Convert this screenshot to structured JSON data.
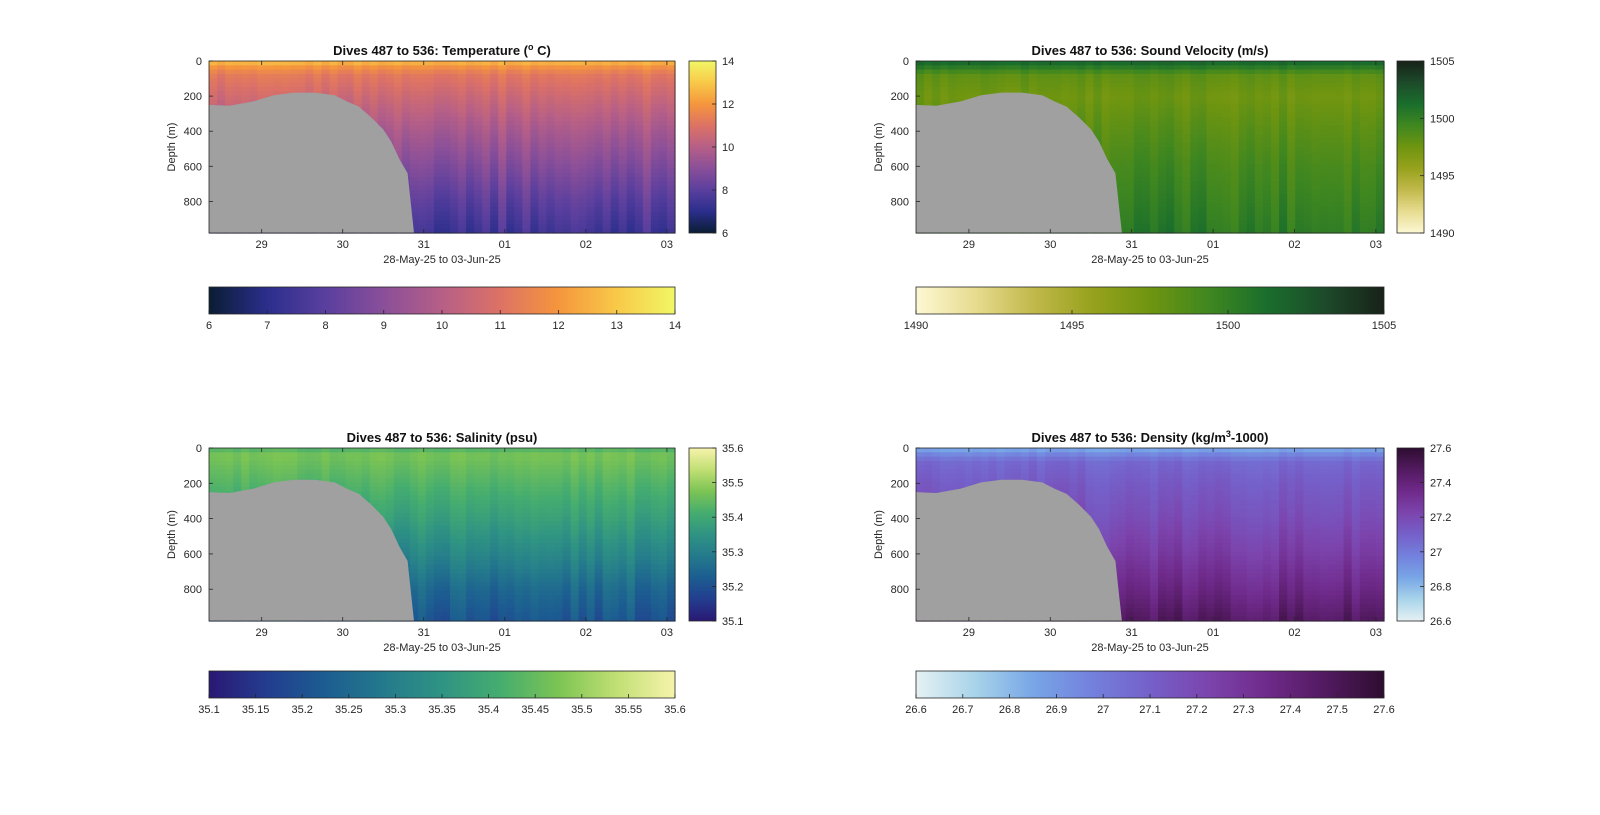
{
  "figure": {
    "background": "#ffffff",
    "mask_color": "#a0a0a0"
  },
  "chart_data": [
    {
      "type": "heatmap",
      "title": "Dives 487 to 536: Temperature (",
      "title_sup": "o",
      "title_end": " C)",
      "xlabel": "28-May-25 to 03-Jun-25",
      "ylabel": "Depth (m)",
      "x_ticks": [
        "29",
        "30",
        "31",
        "01",
        "02",
        "03"
      ],
      "x_tick_days": [
        29,
        30,
        31,
        32,
        33,
        34
      ],
      "xlim": [
        28.35,
        34.1
      ],
      "ylim": [
        0,
        980
      ],
      "y_ticks": [
        "0",
        "200",
        "400",
        "600",
        "800"
      ],
      "y_tick_values": [
        0,
        200,
        400,
        600,
        800
      ],
      "clim": [
        6,
        14
      ],
      "cbar_right_ticks": [
        "6",
        "8",
        "10",
        "12",
        "14"
      ],
      "cbar_right_values": [
        6,
        8,
        10,
        12,
        14
      ],
      "cbar_bottom_ticks": [
        "6",
        "7",
        "8",
        "9",
        "10",
        "11",
        "12",
        "13",
        "14"
      ],
      "cbar_bottom_values": [
        6,
        7,
        8,
        9,
        10,
        11,
        12,
        13,
        14
      ],
      "colormap": [
        "#0a1d33",
        "#2b2e8c",
        "#5a3f9e",
        "#8a4f99",
        "#b65f87",
        "#dd7265",
        "#f5963d",
        "#f8c948",
        "#f1f766"
      ],
      "profile_depth": [
        0,
        40,
        80,
        200,
        400,
        600,
        800,
        980
      ],
      "profile_value": [
        12.8,
        11.8,
        11.2,
        10.6,
        9.7,
        8.9,
        8.1,
        7.5
      ],
      "seabed": {
        "x": [
          28.35,
          28.6,
          28.9,
          29.15,
          29.4,
          29.65,
          29.9,
          30.05,
          30.2,
          30.35,
          30.5,
          30.6,
          30.7,
          30.8,
          30.88
        ],
        "y": [
          250,
          255,
          230,
          195,
          180,
          180,
          195,
          230,
          260,
          320,
          390,
          460,
          560,
          640,
          980
        ],
        "end_x": 30.88
      }
    },
    {
      "type": "heatmap",
      "title": "Dives 487 to 536: Sound Velocity (m/s)",
      "title_sup": "",
      "title_end": "",
      "xlabel": "28-May-25 to 03-Jun-25",
      "ylabel": "Depth (m)",
      "x_ticks": [
        "29",
        "30",
        "31",
        "01",
        "02",
        "03"
      ],
      "x_tick_days": [
        29,
        30,
        31,
        32,
        33,
        34
      ],
      "xlim": [
        28.35,
        34.1
      ],
      "ylim": [
        0,
        980
      ],
      "y_ticks": [
        "0",
        "200",
        "400",
        "600",
        "800"
      ],
      "y_tick_values": [
        0,
        200,
        400,
        600,
        800
      ],
      "clim": [
        1490,
        1505
      ],
      "cbar_right_ticks": [
        "1490",
        "1495",
        "1500",
        "1505"
      ],
      "cbar_right_values": [
        1490,
        1495,
        1500,
        1505
      ],
      "cbar_bottom_ticks": [
        "1490",
        "1495",
        "1500",
        "1505"
      ],
      "cbar_bottom_values": [
        1490,
        1495,
        1500,
        1505
      ],
      "colormap": [
        "#fdf8d4",
        "#e7dc90",
        "#c2b94c",
        "#97a21d",
        "#6f9510",
        "#3f8720",
        "#1a6e2c",
        "#1d4a2a",
        "#172218"
      ],
      "profile_depth": [
        0,
        40,
        80,
        200,
        400,
        600,
        800,
        980
      ],
      "profile_value": [
        1502.0,
        1500.2,
        1498.2,
        1497.5,
        1498.4,
        1499.2,
        1499.8,
        1500.4
      ],
      "seabed": {
        "x": [
          28.35,
          28.6,
          28.9,
          29.15,
          29.4,
          29.65,
          29.9,
          30.05,
          30.2,
          30.35,
          30.5,
          30.6,
          30.7,
          30.8,
          30.88
        ],
        "y": [
          250,
          255,
          230,
          195,
          180,
          180,
          195,
          230,
          260,
          320,
          390,
          460,
          560,
          640,
          980
        ],
        "end_x": 30.88
      }
    },
    {
      "type": "heatmap",
      "title": "Dives 487 to 536: Salinity (psu)",
      "title_sup": "",
      "title_end": "",
      "xlabel": "28-May-25 to 03-Jun-25",
      "ylabel": "Depth (m)",
      "x_ticks": [
        "29",
        "30",
        "31",
        "01",
        "02",
        "03"
      ],
      "x_tick_days": [
        29,
        30,
        31,
        32,
        33,
        34
      ],
      "xlim": [
        28.35,
        34.1
      ],
      "ylim": [
        0,
        980
      ],
      "y_ticks": [
        "0",
        "200",
        "400",
        "600",
        "800"
      ],
      "y_tick_values": [
        0,
        200,
        400,
        600,
        800
      ],
      "clim": [
        35.1,
        35.6
      ],
      "cbar_right_ticks": [
        "35.1",
        "35.2",
        "35.3",
        "35.4",
        "35.5",
        "35.6"
      ],
      "cbar_right_values": [
        35.1,
        35.2,
        35.3,
        35.4,
        35.5,
        35.6
      ],
      "cbar_bottom_ticks": [
        "35.1",
        "35.15",
        "35.2",
        "35.25",
        "35.3",
        "35.35",
        "35.4",
        "35.45",
        "35.5",
        "35.55",
        "35.6"
      ],
      "cbar_bottom_values": [
        35.1,
        35.15,
        35.2,
        35.25,
        35.3,
        35.35,
        35.4,
        35.45,
        35.5,
        35.55,
        35.6
      ],
      "colormap": [
        "#2a1873",
        "#233d8f",
        "#1c5d91",
        "#247a8c",
        "#2f9383",
        "#45ad6f",
        "#7cc454",
        "#c1df74",
        "#f7f3ac"
      ],
      "profile_depth": [
        0,
        40,
        80,
        200,
        400,
        600,
        800,
        980
      ],
      "profile_value": [
        35.42,
        35.47,
        35.46,
        35.43,
        35.38,
        35.32,
        35.25,
        35.21
      ],
      "seabed": {
        "x": [
          28.35,
          28.6,
          28.9,
          29.15,
          29.4,
          29.65,
          29.9,
          30.05,
          30.2,
          30.35,
          30.5,
          30.6,
          30.7,
          30.8,
          30.88
        ],
        "y": [
          250,
          255,
          230,
          195,
          180,
          180,
          195,
          230,
          260,
          320,
          390,
          460,
          560,
          640,
          980
        ],
        "end_x": 30.88
      }
    },
    {
      "type": "heatmap",
      "title": "Dives 487 to 536: Density (kg/m",
      "title_sup": "3",
      "title_end": "-1000)",
      "xlabel": "28-May-25 to 03-Jun-25",
      "ylabel": "Depth (m)",
      "x_ticks": [
        "29",
        "30",
        "31",
        "01",
        "02",
        "03"
      ],
      "x_tick_days": [
        29,
        30,
        31,
        32,
        33,
        34
      ],
      "xlim": [
        28.35,
        34.1
      ],
      "ylim": [
        0,
        980
      ],
      "y_ticks": [
        "0",
        "200",
        "400",
        "600",
        "800"
      ],
      "y_tick_values": [
        0,
        200,
        400,
        600,
        800
      ],
      "clim": [
        26.6,
        27.6
      ],
      "cbar_right_ticks": [
        "26.6",
        "26.8",
        "27",
        "27.2",
        "27.4",
        "27.6"
      ],
      "cbar_right_values": [
        26.6,
        26.8,
        27.0,
        27.2,
        27.4,
        27.6
      ],
      "cbar_bottom_ticks": [
        "26.6",
        "26.7",
        "26.8",
        "26.9",
        "27",
        "27.1",
        "27.2",
        "27.3",
        "27.4",
        "27.5",
        "27.6"
      ],
      "cbar_bottom_values": [
        26.6,
        26.7,
        26.8,
        26.9,
        27.0,
        27.1,
        27.2,
        27.3,
        27.4,
        27.5,
        27.6
      ],
      "colormap": [
        "#e6f1f3",
        "#a9d4ea",
        "#78a6e6",
        "#7381dd",
        "#7560c9",
        "#7c44ad",
        "#6f2a8a",
        "#521a60",
        "#2e0d30"
      ],
      "profile_depth": [
        0,
        40,
        80,
        200,
        400,
        600,
        800,
        980
      ],
      "profile_value": [
        26.82,
        26.97,
        27.07,
        27.12,
        27.18,
        27.26,
        27.36,
        27.47
      ],
      "seabed": {
        "x": [
          28.35,
          28.6,
          28.9,
          29.15,
          29.4,
          29.65,
          29.9,
          30.05,
          30.2,
          30.35,
          30.5,
          30.6,
          30.7,
          30.8,
          30.88
        ],
        "y": [
          250,
          255,
          230,
          195,
          180,
          180,
          195,
          230,
          260,
          320,
          390,
          460,
          560,
          640,
          980
        ],
        "end_x": 30.88
      }
    }
  ]
}
